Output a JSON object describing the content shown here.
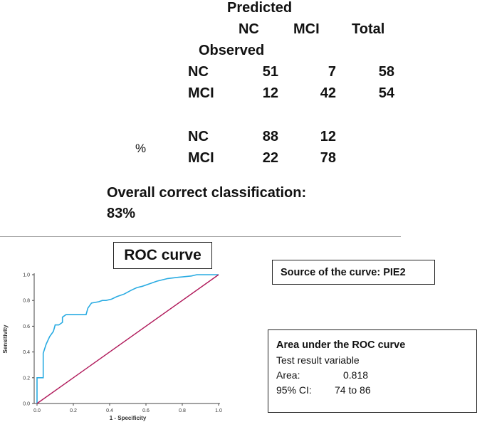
{
  "table": {
    "predicted_label": "Predicted",
    "observed_label": "Observed",
    "col_headers": [
      "NC",
      "MCI",
      "Total"
    ],
    "count_rows": [
      {
        "label": "NC",
        "values": [
          "51",
          "7",
          "58"
        ]
      },
      {
        "label": "MCI",
        "values": [
          "12",
          "42",
          "54"
        ]
      }
    ],
    "percent_symbol": "%",
    "percent_rows": [
      {
        "label": "NC",
        "values": [
          "88",
          "12"
        ]
      },
      {
        "label": "MCI",
        "values": [
          "22",
          "78"
        ]
      }
    ]
  },
  "overall": {
    "line1": "Overall correct classification:",
    "line2": "83%"
  },
  "roc": {
    "title_box": "ROC curve",
    "source": "Source of the curve: PIE2",
    "auc_box": {
      "header": "Area under the ROC curve",
      "line1": "Test result variable",
      "area_label": "Area:",
      "area_value": "0.818",
      "ci_label": "95% CI:",
      "ci_value": "74 to 86"
    }
  },
  "chart_data": {
    "type": "line",
    "title": "ROC curve",
    "xlabel": "1 - Specificity",
    "ylabel": "Sensitivity",
    "xlim": [
      0,
      1
    ],
    "ylim": [
      0,
      1
    ],
    "x_ticks": [
      "0.0",
      "0.2",
      "0.4",
      "0.6",
      "0.8",
      "1.0"
    ],
    "y_ticks": [
      "0.0",
      "0.2",
      "0.4",
      "0.6",
      "0.8",
      "1.0"
    ],
    "series": [
      {
        "name": "PIE2",
        "color": "#29abe2",
        "x": [
          0,
          0,
          0.034,
          0.034,
          0.05,
          0.07,
          0.09,
          0.1,
          0.12,
          0.14,
          0.14,
          0.16,
          0.2,
          0.27,
          0.28,
          0.3,
          0.34,
          0.36,
          0.38,
          0.41,
          0.44,
          0.48,
          0.52,
          0.55,
          0.58,
          0.62,
          0.66,
          0.72,
          0.78,
          0.85,
          0.88,
          1.0
        ],
        "y": [
          0,
          0.2,
          0.2,
          0.39,
          0.46,
          0.52,
          0.56,
          0.61,
          0.61,
          0.63,
          0.67,
          0.69,
          0.69,
          0.69,
          0.74,
          0.78,
          0.79,
          0.8,
          0.8,
          0.81,
          0.83,
          0.85,
          0.88,
          0.9,
          0.91,
          0.93,
          0.95,
          0.97,
          0.98,
          0.99,
          1.0,
          1.0
        ]
      },
      {
        "name": "Reference line",
        "color": "#b0195a",
        "x": [
          0,
          1
        ],
        "y": [
          0,
          1
        ]
      }
    ]
  }
}
